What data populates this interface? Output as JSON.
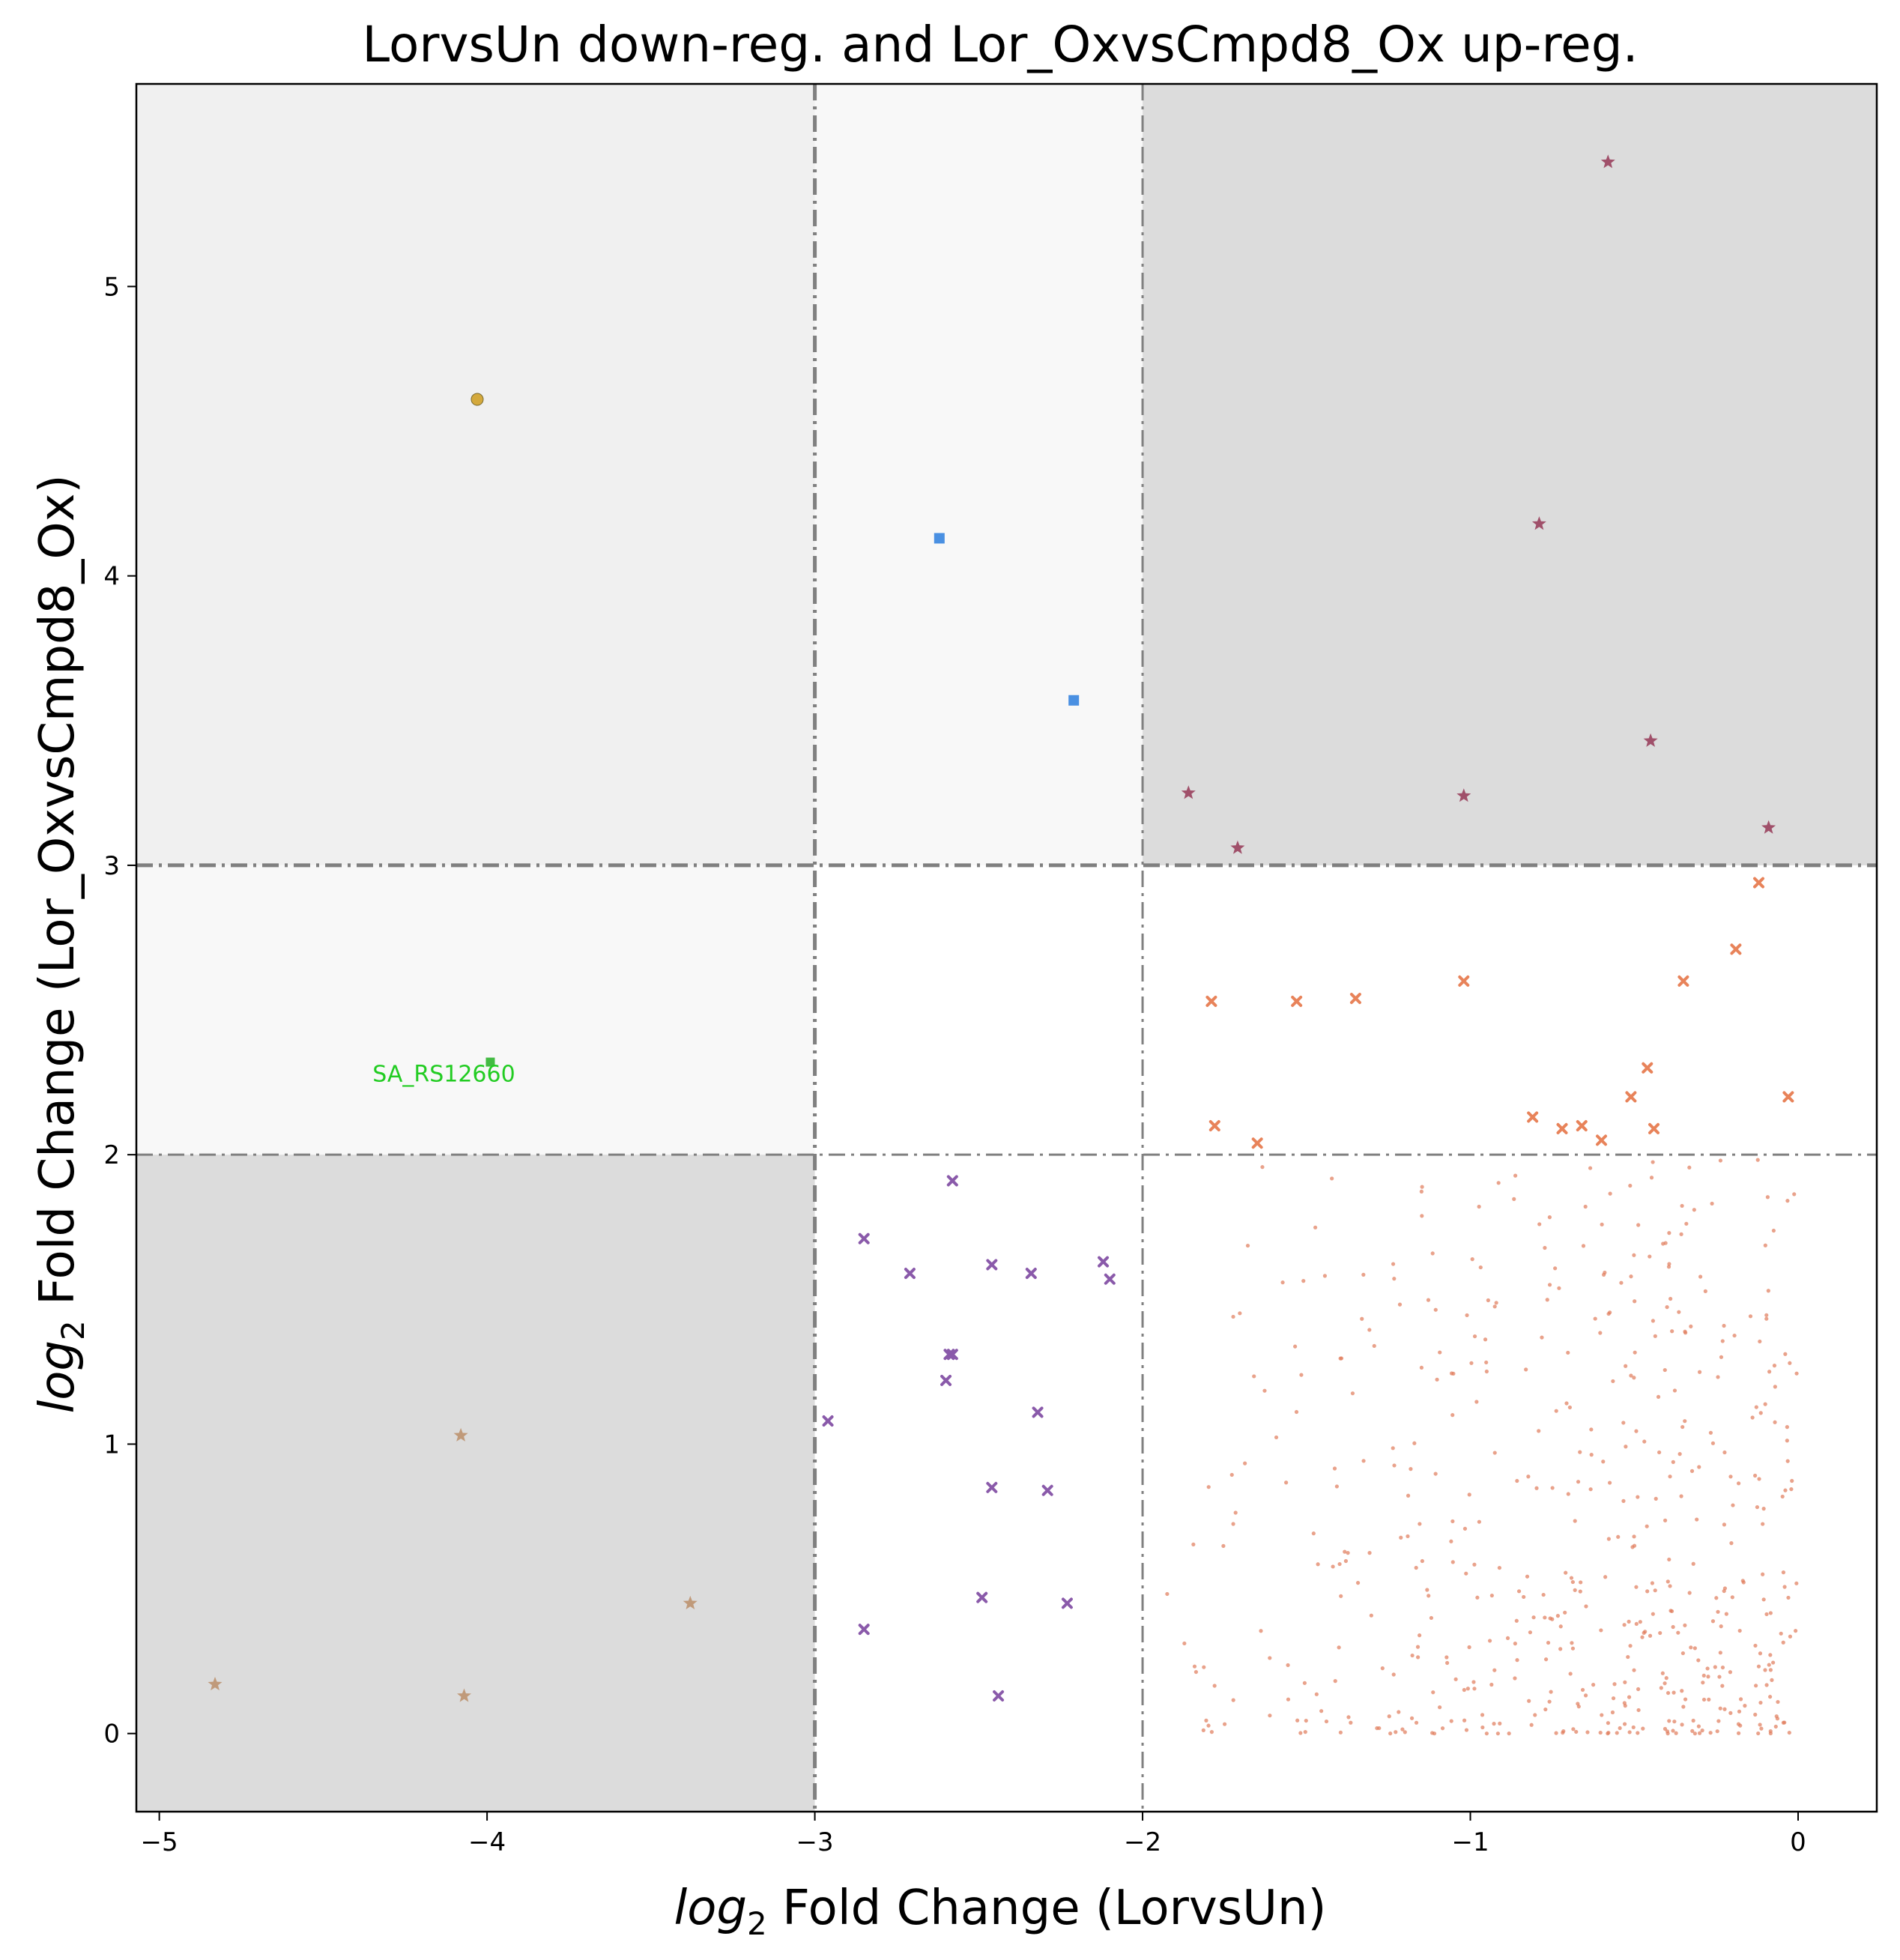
{
  "chart_data": {
    "type": "scatter",
    "title": "LorvsUn down-reg. and Lor_OxvsCmpd8_Ox up-reg.",
    "xlabel_prefix": "log",
    "xlabel_sub": "2",
    "xlabel_rest": " Fold Change (LorvsUn)",
    "ylabel_prefix": "log",
    "ylabel_sub": "2",
    "ylabel_rest": " Fold Change (Lor_OxvsCmpd8_Ox)",
    "xlim": [
      -5.07,
      0.24
    ],
    "ylim": [
      -0.27,
      5.7
    ],
    "xticks": [
      -5,
      -4,
      -3,
      -2,
      -1,
      0
    ],
    "yticks": [
      0,
      1,
      2,
      3,
      4,
      5
    ],
    "x_thresholds": [
      -3,
      -2
    ],
    "y_thresholds": [
      2,
      3
    ],
    "grid": false,
    "regions": [
      {
        "x": [
          -5.07,
          -3
        ],
        "y": [
          3,
          5.7
        ],
        "color": "#f0f0f0"
      },
      {
        "x": [
          -3,
          -2
        ],
        "y": [
          3,
          5.7
        ],
        "color": "#f8f8f8"
      },
      {
        "x": [
          -2,
          0.24
        ],
        "y": [
          3,
          5.7
        ],
        "color": "#dcdcdc"
      },
      {
        "x": [
          -5.07,
          -3
        ],
        "y": [
          2,
          3
        ],
        "color": "#f8f8f8"
      },
      {
        "x": [
          -5.07,
          -3
        ],
        "y": [
          -0.27,
          2
        ],
        "color": "#dcdcdc"
      }
    ],
    "series": [
      {
        "marker": "circle",
        "color": "#d4a93c",
        "size": 14,
        "points": [
          [
            -4.03,
            4.61
          ]
        ]
      },
      {
        "marker": "square",
        "color": "#4a90e2",
        "size": 14,
        "points": [
          [
            -2.62,
            4.13
          ],
          [
            -2.21,
            3.57
          ]
        ]
      },
      {
        "marker": "square",
        "color": "#44bb44",
        "size": 12,
        "points": [
          [
            -3.99,
            2.32
          ]
        ]
      },
      {
        "marker": "star",
        "color": "#a0506a",
        "size": 10,
        "points": [
          [
            -0.58,
            5.43
          ],
          [
            -0.79,
            4.18
          ],
          [
            -0.45,
            3.43
          ],
          [
            -1.86,
            3.25
          ],
          [
            -1.02,
            3.24
          ],
          [
            -1.71,
            3.06
          ],
          [
            -0.09,
            3.13
          ]
        ]
      },
      {
        "marker": "star",
        "color": "#c09a7a",
        "size": 10,
        "points": [
          [
            -4.08,
            1.03
          ],
          [
            -3.38,
            0.45
          ],
          [
            -4.83,
            0.17
          ],
          [
            -4.07,
            0.13
          ]
        ]
      },
      {
        "marker": "x",
        "color": "#e8835a",
        "size": 11,
        "points": [
          [
            -0.12,
            2.94
          ],
          [
            -0.19,
            2.71
          ],
          [
            -1.02,
            2.6
          ],
          [
            -0.35,
            2.6
          ],
          [
            -1.79,
            2.53
          ],
          [
            -1.53,
            2.53
          ],
          [
            -1.35,
            2.54
          ],
          [
            -0.46,
            2.3
          ],
          [
            -0.51,
            2.2
          ],
          [
            -0.03,
            2.2
          ],
          [
            -0.81,
            2.13
          ],
          [
            -1.78,
            2.1
          ],
          [
            -0.72,
            2.09
          ],
          [
            -0.66,
            2.1
          ],
          [
            -0.44,
            2.09
          ],
          [
            -1.65,
            2.04
          ],
          [
            -0.6,
            2.05
          ]
        ]
      },
      {
        "marker": "x",
        "color": "#8a5aaa",
        "size": 11,
        "points": [
          [
            -2.58,
            1.91
          ],
          [
            -2.85,
            1.71
          ],
          [
            -2.71,
            1.59
          ],
          [
            -2.46,
            1.62
          ],
          [
            -2.34,
            1.59
          ],
          [
            -2.12,
            1.63
          ],
          [
            -2.1,
            1.57
          ],
          [
            -2.59,
            1.31
          ],
          [
            -2.58,
            1.31
          ],
          [
            -2.6,
            1.22
          ],
          [
            -2.96,
            1.08
          ],
          [
            -2.32,
            1.11
          ],
          [
            -2.46,
            0.85
          ],
          [
            -2.29,
            0.84
          ],
          [
            -2.49,
            0.47
          ],
          [
            -2.23,
            0.45
          ],
          [
            -2.85,
            0.36
          ],
          [
            -2.44,
            0.13
          ]
        ]
      }
    ],
    "cloud": {
      "color": "#e07a5a",
      "count": 520,
      "x_range": [
        -1.99,
        0
      ],
      "y_range": [
        0,
        1.99
      ]
    },
    "annotations": [
      {
        "text": "SA_RS12660",
        "x": -3.99,
        "y": 2.32
      }
    ]
  }
}
